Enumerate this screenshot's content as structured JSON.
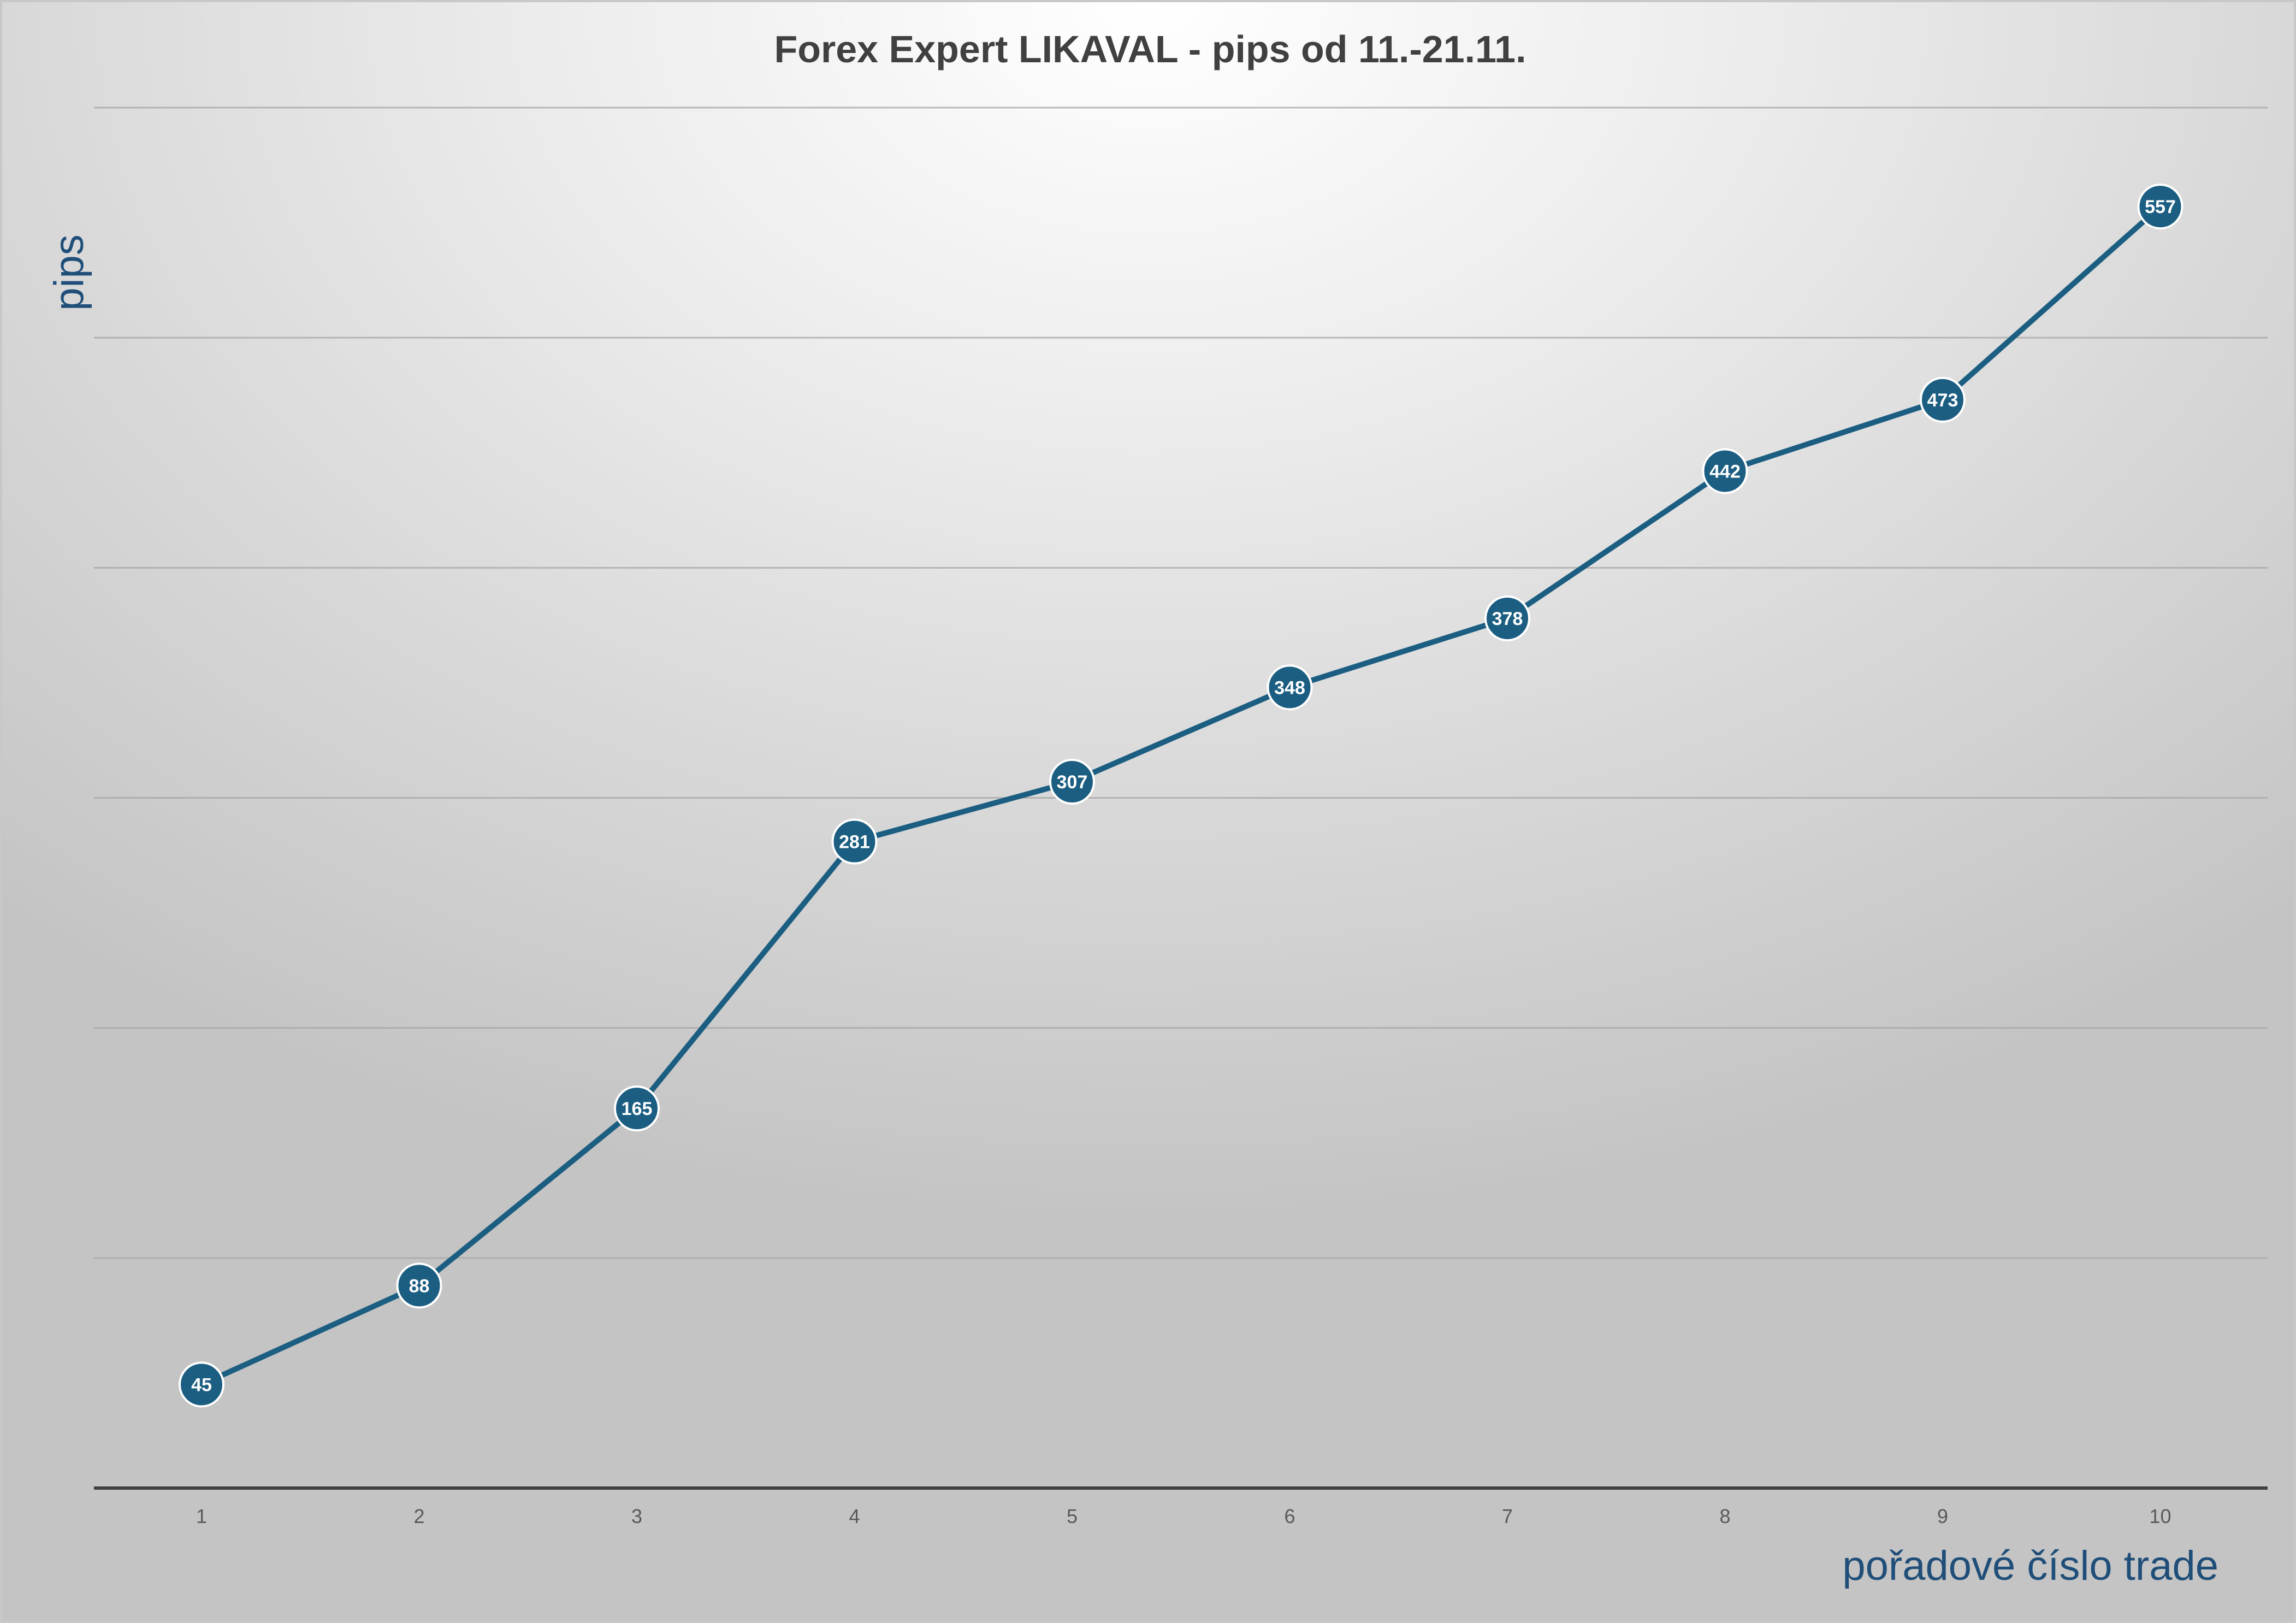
{
  "chart_data": {
    "type": "line",
    "title": "Forex Expert LIKAVAL - pips od 11.-21.11.",
    "xlabel": "pořadové číslo trade",
    "ylabel": "pips",
    "categories": [
      "1",
      "2",
      "3",
      "4",
      "5",
      "6",
      "7",
      "8",
      "9",
      "10"
    ],
    "series": [
      {
        "values": [
          45,
          88,
          165,
          281,
          307,
          348,
          378,
          442,
          473,
          557
        ]
      }
    ],
    "ylim": [
      0,
      600
    ],
    "grid": true,
    "legend": "none",
    "colors": {
      "line": "#1b5e82",
      "marker": "#1b5e82",
      "marker_border": "#ffffff",
      "gridline": "#a6a6a6",
      "axis": "#404040"
    }
  }
}
